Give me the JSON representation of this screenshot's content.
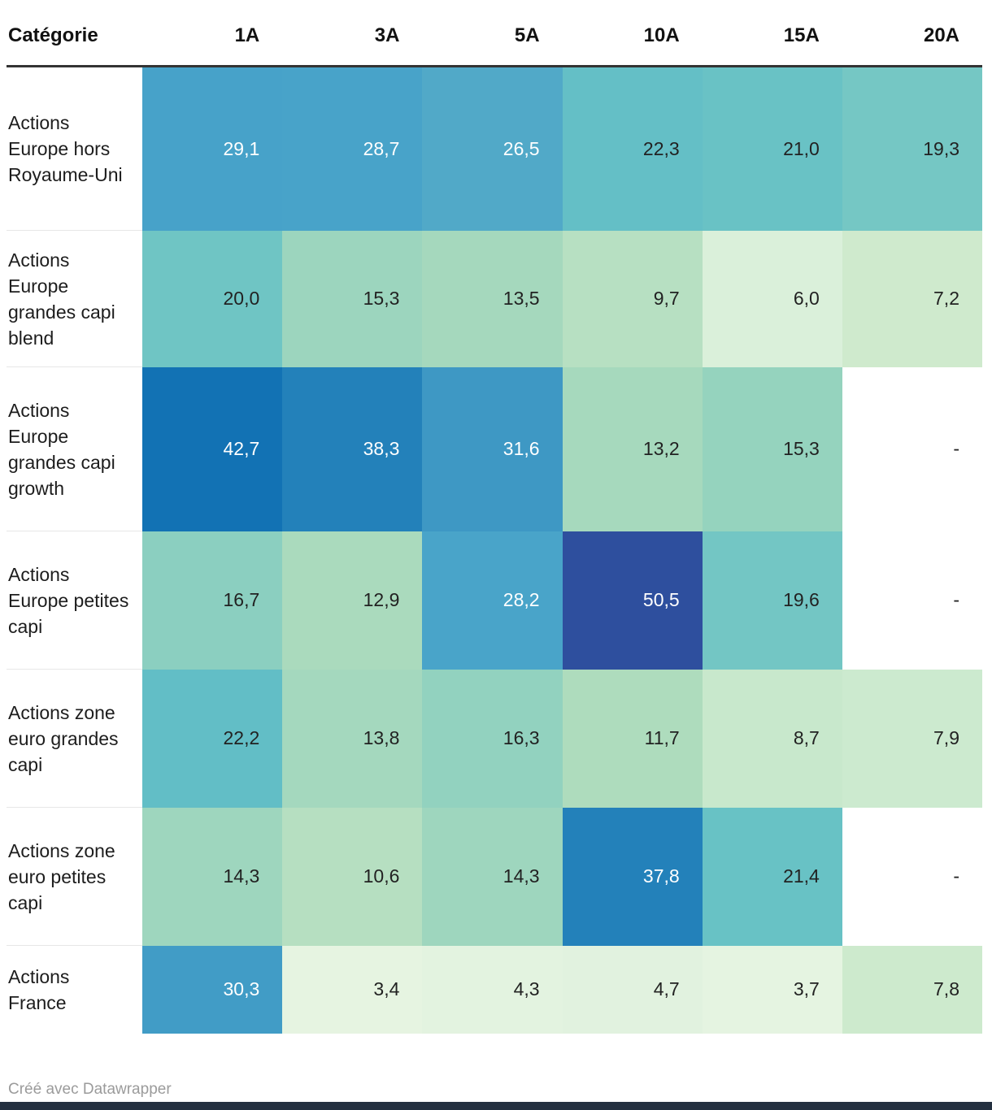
{
  "table": {
    "header": {
      "category": "Catégorie",
      "columns": [
        "1A",
        "3A",
        "5A",
        "10A",
        "15A",
        "20A"
      ]
    },
    "rows": [
      {
        "label": "Actions Europe hors Royaume-Uni",
        "cells": [
          {
            "text": "29,1",
            "bg": "#47a2c9",
            "fg": "#ffffff"
          },
          {
            "text": "28,7",
            "bg": "#48a3c9",
            "fg": "#ffffff"
          },
          {
            "text": "26,5",
            "bg": "#51a9c8",
            "fg": "#ffffff"
          },
          {
            "text": "22,3",
            "bg": "#64bfc6",
            "fg": "#222222"
          },
          {
            "text": "21,0",
            "bg": "#69c2c5",
            "fg": "#222222"
          },
          {
            "text": "19,3",
            "bg": "#75c7c4",
            "fg": "#222222"
          }
        ]
      },
      {
        "label": "Actions Europe grandes capi blend",
        "cells": [
          {
            "text": "20,0",
            "bg": "#6fc5c4",
            "fg": "#222222"
          },
          {
            "text": "15,3",
            "bg": "#9cd5be",
            "fg": "#222222"
          },
          {
            "text": "13,5",
            "bg": "#a5d8bd",
            "fg": "#222222"
          },
          {
            "text": "9,7",
            "bg": "#b7e0c2",
            "fg": "#222222"
          },
          {
            "text": "6,0",
            "bg": "#daf0da",
            "fg": "#222222"
          },
          {
            "text": "7,2",
            "bg": "#cfeacd",
            "fg": "#222222"
          }
        ]
      },
      {
        "label": "Actions Europe grandes capi growth",
        "cells": [
          {
            "text": "42,7",
            "bg": "#1272b4",
            "fg": "#ffffff"
          },
          {
            "text": "38,3",
            "bg": "#2381ba",
            "fg": "#ffffff"
          },
          {
            "text": "31,6",
            "bg": "#3e98c4",
            "fg": "#ffffff"
          },
          {
            "text": "13,2",
            "bg": "#a6d9bd",
            "fg": "#222222"
          },
          {
            "text": "15,3",
            "bg": "#95d3be",
            "fg": "#222222"
          },
          {
            "text": "-",
            "bg": "#ffffff",
            "fg": "#222222"
          }
        ]
      },
      {
        "label": "Actions Europe petites capi",
        "cells": [
          {
            "text": "16,7",
            "bg": "#8bcfc0",
            "fg": "#222222"
          },
          {
            "text": "12,9",
            "bg": "#aadabd",
            "fg": "#222222"
          },
          {
            "text": "28,2",
            "bg": "#49a4c9",
            "fg": "#ffffff"
          },
          {
            "text": "50,5",
            "bg": "#2e4f9e",
            "fg": "#ffffff"
          },
          {
            "text": "19,6",
            "bg": "#73c6c4",
            "fg": "#222222"
          },
          {
            "text": "-",
            "bg": "#ffffff",
            "fg": "#222222"
          }
        ]
      },
      {
        "label": "Actions zone euro grandes capi",
        "cells": [
          {
            "text": "22,2",
            "bg": "#62bec6",
            "fg": "#222222"
          },
          {
            "text": "13,8",
            "bg": "#a4d8be",
            "fg": "#222222"
          },
          {
            "text": "16,3",
            "bg": "#92d2bf",
            "fg": "#222222"
          },
          {
            "text": "11,7",
            "bg": "#aedcbd",
            "fg": "#222222"
          },
          {
            "text": "8,7",
            "bg": "#c8e8cc",
            "fg": "#222222"
          },
          {
            "text": "7,9",
            "bg": "#cceacf",
            "fg": "#222222"
          }
        ]
      },
      {
        "label": "Actions zone euro petites capi",
        "cells": [
          {
            "text": "14,3",
            "bg": "#9ed6be",
            "fg": "#222222"
          },
          {
            "text": "10,6",
            "bg": "#b6dfc1",
            "fg": "#222222"
          },
          {
            "text": "14,3",
            "bg": "#9ed6be",
            "fg": "#222222"
          },
          {
            "text": "37,8",
            "bg": "#2381ba",
            "fg": "#ffffff"
          },
          {
            "text": "21,4",
            "bg": "#68c2c5",
            "fg": "#222222"
          },
          {
            "text": "-",
            "bg": "#ffffff",
            "fg": "#222222"
          }
        ]
      },
      {
        "label": "Actions France",
        "cells": [
          {
            "text": "30,3",
            "bg": "#419cc6",
            "fg": "#ffffff"
          },
          {
            "text": "3,4",
            "bg": "#e6f4e1",
            "fg": "#222222"
          },
          {
            "text": "4,3",
            "bg": "#e3f3e0",
            "fg": "#222222"
          },
          {
            "text": "4,7",
            "bg": "#e1f2df",
            "fg": "#222222"
          },
          {
            "text": "3,7",
            "bg": "#e5f4e1",
            "fg": "#222222"
          },
          {
            "text": "7,8",
            "bg": "#cdeacd",
            "fg": "#222222"
          }
        ]
      }
    ]
  },
  "footer": {
    "text": "Créé avec Datawrapper"
  },
  "colors": {
    "rule": "#333333",
    "row_separator": "#e7e7e7",
    "footer_text": "#9b9b9b",
    "bottom_bar": "#243040",
    "scale_low": "#e6f4e1",
    "scale_mid": "#6fc5c4",
    "scale_high": "#1272b4",
    "scale_max": "#2e4f9e"
  },
  "chart_data": {
    "type": "heatmap",
    "title": "",
    "corner_label": "Catégorie",
    "columns": [
      "1A",
      "3A",
      "5A",
      "10A",
      "15A",
      "20A"
    ],
    "rows": [
      "Actions Europe hors Royaume-Uni",
      "Actions Europe grandes capi blend",
      "Actions Europe grandes capi growth",
      "Actions Europe petites capi",
      "Actions zone euro grandes capi",
      "Actions zone euro petites capi",
      "Actions France"
    ],
    "values": [
      [
        29.1,
        28.7,
        26.5,
        22.3,
        21.0,
        19.3
      ],
      [
        20.0,
        15.3,
        13.5,
        9.7,
        6.0,
        7.2
      ],
      [
        42.7,
        38.3,
        31.6,
        13.2,
        15.3,
        null
      ],
      [
        16.7,
        12.9,
        28.2,
        50.5,
        19.6,
        null
      ],
      [
        22.2,
        13.8,
        16.3,
        11.7,
        8.7,
        7.9
      ],
      [
        14.3,
        10.6,
        14.3,
        37.8,
        21.4,
        null
      ],
      [
        30.3,
        3.4,
        4.3,
        4.7,
        3.7,
        7.8
      ]
    ],
    "missing_marker": "-",
    "decimal_separator": ",",
    "value_range": [
      3.4,
      50.5
    ],
    "color_scale": "green-teal-blue sequential (low=light green, high=dark blue)",
    "legend_position": "none",
    "attribution": "Créé avec Datawrapper"
  }
}
